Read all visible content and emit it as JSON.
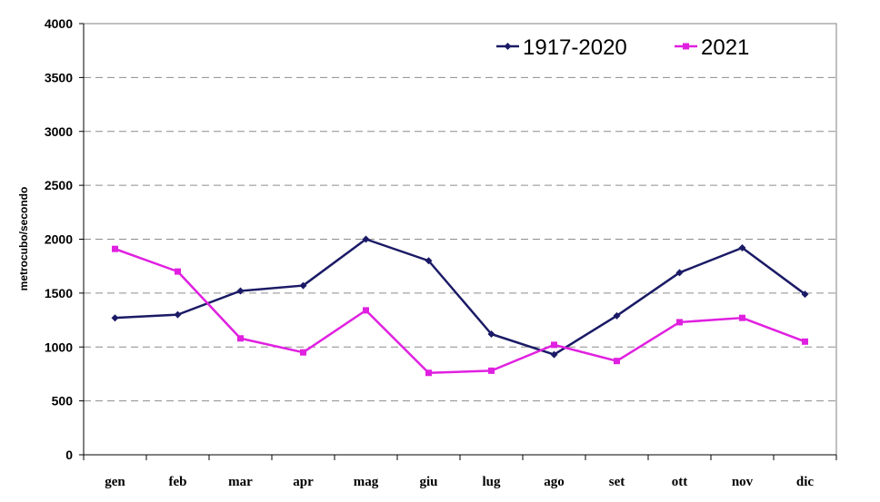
{
  "chart_data": {
    "type": "line",
    "title": "",
    "xlabel": "",
    "ylabel": "metrocubo/secondo",
    "categories": [
      "gen",
      "feb",
      "mar",
      "apr",
      "mag",
      "giu",
      "lug",
      "ago",
      "set",
      "ott",
      "nov",
      "dic"
    ],
    "ylim": [
      0,
      4000
    ],
    "yticks": [
      0,
      500,
      1000,
      1500,
      2000,
      2500,
      3000,
      3500,
      4000
    ],
    "grid": true,
    "legend_position": "top-right",
    "series": [
      {
        "name": "1917-2020",
        "color": "#1a1a66",
        "marker": "diamond",
        "values": [
          1270,
          1300,
          1520,
          1570,
          2000,
          1800,
          1120,
          930,
          1290,
          1690,
          1920,
          1490
        ]
      },
      {
        "name": "2021",
        "color": "#e020e0",
        "marker": "square",
        "values": [
          1910,
          1700,
          1080,
          950,
          1340,
          760,
          780,
          1020,
          870,
          1230,
          1270,
          1050
        ]
      }
    ]
  }
}
